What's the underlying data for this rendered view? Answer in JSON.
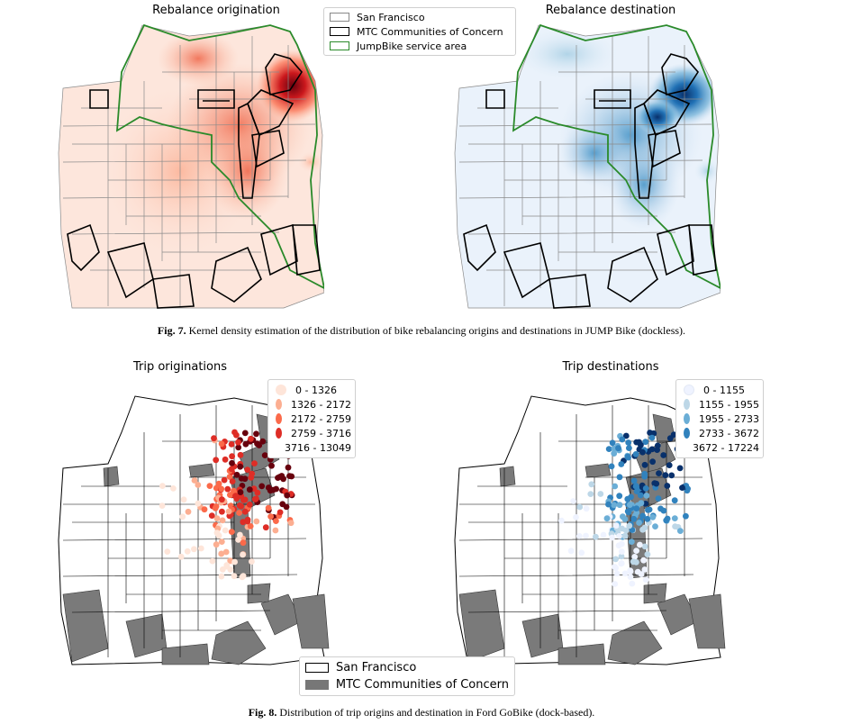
{
  "fig7": {
    "title_left": "Rebalance origination",
    "title_right": "Rebalance destination",
    "legend": [
      {
        "label": "San Francisco",
        "kind": "grey-outline"
      },
      {
        "label": "MTC Communities of Concern",
        "kind": "black-outline"
      },
      {
        "label": "JumpBike service area",
        "kind": "green-outline"
      }
    ],
    "caption_label": "Fig. 7.",
    "caption_text": " Kernel density estimation of the distribution of bike rebalancing origins and destinations in JUMP Bike (dockless)."
  },
  "fig8": {
    "title_left": "Trip originations",
    "title_right": "Trip destinations",
    "legend_left": [
      "0 - 1326",
      "1326 - 2172",
      "2172 - 2759",
      "2759 - 3716",
      "3716 - 13049"
    ],
    "legend_right": [
      "0 - 1155",
      "1155 - 1955",
      "1955 - 2733",
      "2733 - 3672",
      "3672 - 17224"
    ],
    "colors_left": [
      "#fee5d9",
      "#fcae91",
      "#fb6a4a",
      "#de2d26",
      "#67000d"
    ],
    "colors_right": [
      "#eff3ff",
      "#bdd7e7",
      "#6baed6",
      "#3182bd",
      "#08306b"
    ],
    "legend_bottom": [
      {
        "label": "San Francisco",
        "kind": "outline"
      },
      {
        "label": "MTC Communities of Concern",
        "kind": "grey-fill"
      }
    ],
    "caption_label": "Fig. 8.",
    "caption_text": " Distribution of trip origins and destination in Ford GoBike (dock-based)."
  },
  "colors": {
    "kde_red_bg": "#fde6dc",
    "kde_blue_bg": "#eaf2fb",
    "service_area": "#2a8a2a",
    "community_fill": "#777777"
  }
}
